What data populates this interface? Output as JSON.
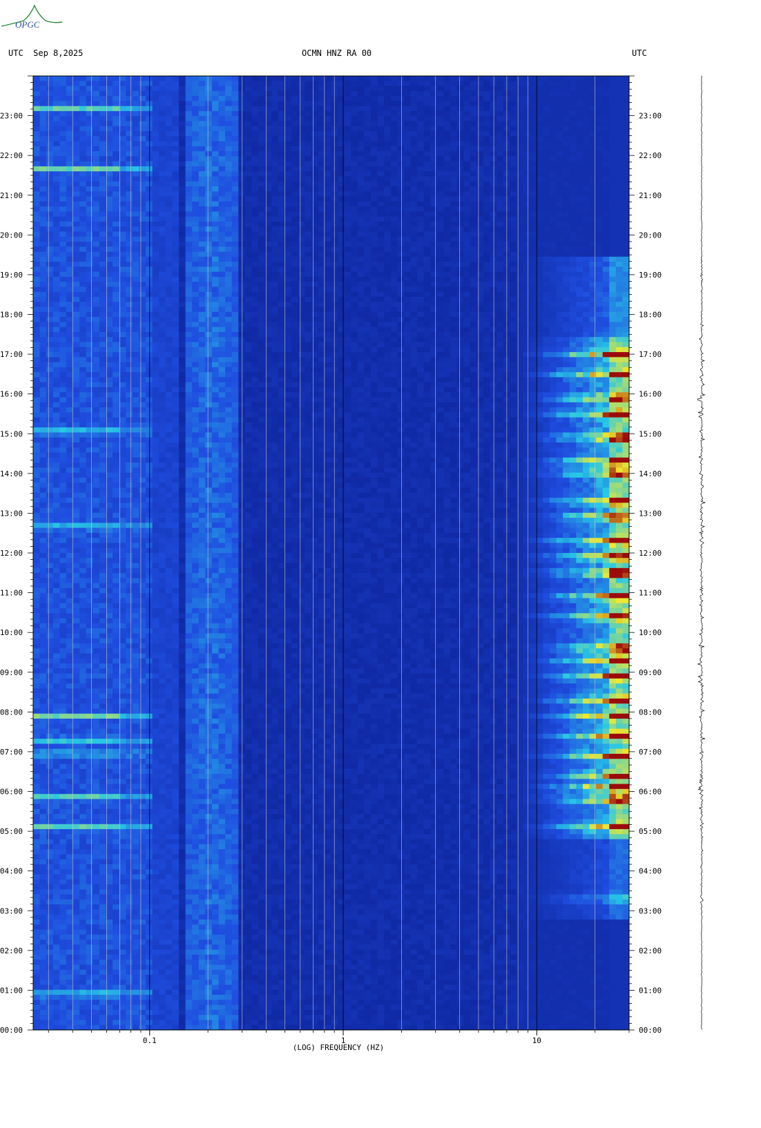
{
  "header": {
    "left_label": "UTC  Sep 8,2025",
    "center_label": "OCMN HNZ RA 00",
    "right_label": "UTC"
  },
  "logo": {
    "text": "OPGC"
  },
  "chart_data": {
    "type": "heatmap",
    "title": "OCMN HNZ RA 00",
    "xlabel": "(LOG) FREQUENCY (HZ)",
    "x_scale": "log",
    "xlim": [
      0.025,
      30
    ],
    "x_ticks": [
      {
        "value": 0.1,
        "label": "0.1"
      },
      {
        "value": 1,
        "label": "1"
      },
      {
        "value": 10,
        "label": "10"
      }
    ],
    "ylabel": "UTC",
    "ylim": [
      "00:00",
      "24:00"
    ],
    "y_ticks": [
      "00:00",
      "01:00",
      "02:00",
      "03:00",
      "04:00",
      "05:00",
      "06:00",
      "07:00",
      "08:00",
      "09:00",
      "10:00",
      "11:00",
      "12:00",
      "13:00",
      "14:00",
      "15:00",
      "16:00",
      "17:00",
      "18:00",
      "19:00",
      "20:00",
      "21:00",
      "22:00",
      "23:00"
    ],
    "colormap": [
      "#0a1a8c",
      "#1f4ee0",
      "#28c8e6",
      "#f0e830",
      "#9b0a0a"
    ]
  },
  "colors": {
    "background": "#ffffff",
    "axis": "#000000"
  }
}
